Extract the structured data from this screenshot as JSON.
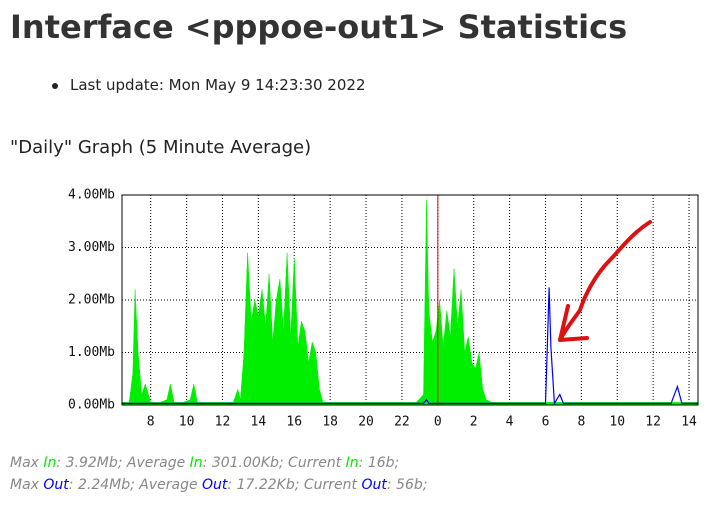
{
  "header": {
    "title": "Interface <pppoe-out1> Statistics",
    "last_update": "Last update: Mon May 9 14:23:30 2022"
  },
  "section_title": "\"Daily\" Graph (5 Minute Average)",
  "chart_data": {
    "type": "area",
    "x": [
      6.4,
      6.8,
      7.0,
      7.13,
      7.3,
      7.5,
      7.7,
      8.0,
      8.5,
      8.9,
      9.1,
      9.3,
      9.8,
      10.2,
      10.4,
      10.6,
      11.2,
      12.0,
      12.6,
      12.86,
      13.0,
      13.2,
      13.4,
      13.6,
      13.8,
      14.0,
      14.2,
      14.4,
      14.6,
      14.8,
      15.0,
      15.2,
      15.4,
      15.6,
      15.8,
      16.0,
      16.2,
      16.4,
      16.6,
      16.8,
      17.0,
      17.2,
      17.4,
      17.6,
      18.0,
      19.0,
      20.0,
      21.0,
      22.0,
      22.8,
      23.2,
      23.37,
      23.5,
      23.7,
      23.9,
      24.1,
      24.3,
      24.5,
      24.7,
      24.9,
      25.1,
      25.3,
      25.5,
      25.7,
      25.9,
      26.1,
      26.3,
      26.5,
      26.7,
      27.0,
      28.0,
      29.0,
      30.0,
      30.1,
      30.2,
      30.3,
      30.5,
      30.8,
      31.0,
      32.0,
      33.0,
      34.0,
      35.0,
      36.0,
      37.0,
      37.35,
      37.6,
      38.0,
      38.5
    ],
    "series": [
      {
        "color": "#00ee00",
        "values": [
          0.05,
          0.05,
          0.6,
          2.2,
          1.0,
          0.2,
          0.4,
          0.05,
          0.05,
          0.1,
          0.4,
          0.05,
          0.05,
          0.1,
          0.4,
          0.05,
          0.05,
          0.05,
          0.05,
          0.3,
          0.1,
          1.0,
          2.9,
          1.6,
          2.0,
          1.7,
          2.2,
          1.5,
          2.5,
          1.2,
          2.0,
          2.4,
          1.4,
          2.9,
          1.3,
          2.8,
          1.1,
          1.6,
          1.4,
          0.8,
          1.2,
          1.0,
          0.3,
          0.05,
          0.05,
          0.05,
          0.05,
          0.05,
          0.05,
          0.05,
          0.2,
          3.9,
          1.8,
          1.2,
          1.4,
          2.0,
          1.1,
          1.8,
          1.3,
          2.6,
          1.5,
          2.2,
          1.0,
          1.3,
          0.8,
          0.7,
          1.0,
          0.3,
          0.1,
          0.05,
          0.05,
          0.05,
          0.05,
          0.05,
          0.05,
          0.05,
          0.05,
          0.05,
          0.05,
          0.05,
          0.05,
          0.05,
          0.05,
          0.05,
          0.05,
          0.05,
          0.05,
          0.05,
          0.05
        ]
      },
      {
        "color": "#0000ff",
        "values": [
          0.03,
          0.03,
          0.03,
          0.03,
          0.03,
          0.03,
          0.03,
          0.03,
          0.03,
          0.03,
          0.03,
          0.03,
          0.03,
          0.03,
          0.03,
          0.03,
          0.03,
          0.03,
          0.03,
          0.03,
          0.03,
          0.03,
          0.03,
          0.03,
          0.03,
          0.03,
          0.03,
          0.03,
          0.03,
          0.03,
          0.03,
          0.03,
          0.03,
          0.03,
          0.03,
          0.03,
          0.03,
          0.03,
          0.03,
          0.03,
          0.03,
          0.03,
          0.03,
          0.03,
          0.03,
          0.03,
          0.03,
          0.03,
          0.03,
          0.03,
          0.03,
          0.1,
          0.03,
          0.03,
          0.03,
          0.03,
          0.03,
          0.03,
          0.03,
          0.03,
          0.03,
          0.03,
          0.03,
          0.03,
          0.03,
          0.03,
          0.03,
          0.03,
          0.03,
          0.03,
          0.03,
          0.03,
          0.03,
          1.1,
          2.24,
          1.1,
          0.03,
          0.2,
          0.03,
          0.03,
          0.03,
          0.03,
          0.03,
          0.03,
          0.03,
          0.35,
          0.03,
          0.03,
          0.03
        ]
      }
    ],
    "xlim": [
      6.4,
      38.5
    ],
    "xticks": [
      8,
      10,
      12,
      14,
      16,
      18,
      20,
      22,
      {
        "value": 24,
        "label": "0"
      },
      {
        "value": 26,
        "label": "2"
      },
      {
        "value": 28,
        "label": "4"
      },
      {
        "value": 30,
        "label": "6"
      },
      {
        "value": 32,
        "label": "8"
      },
      {
        "value": 34,
        "label": "10"
      },
      {
        "value": 36,
        "label": "12"
      },
      {
        "value": 38,
        "label": "14"
      }
    ],
    "ylim": [
      0,
      4
    ],
    "yticks": [
      {
        "value": 0,
        "label": "0.00Mb"
      },
      {
        "value": 1,
        "label": "1.00Mb"
      },
      {
        "value": 2,
        "label": "2.00Mb"
      },
      {
        "value": 3,
        "label": "3.00Mb"
      },
      {
        "value": 4,
        "label": "4.00Mb"
      }
    ],
    "grid": true
  },
  "stats": [
    [
      "Max ",
      "In",
      ": 3.92Mb; Average ",
      "In",
      ": 301.00Kb; Current ",
      "In",
      ": 16b;"
    ],
    [
      "Max ",
      "Out",
      ": 2.24Mb; Average ",
      "Out",
      ": 17.22Kb; Current ",
      "Out",
      ": 56b;"
    ]
  ]
}
